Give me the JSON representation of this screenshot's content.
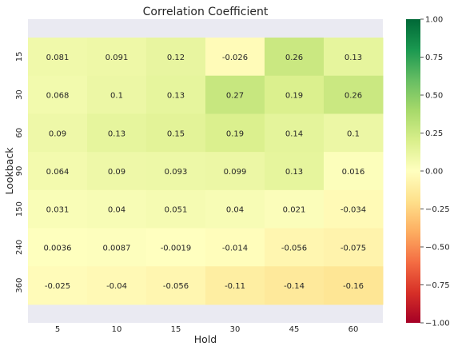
{
  "chart_data": {
    "type": "heatmap",
    "title": "Correlation Coefficient",
    "xlabel": "Hold",
    "ylabel": "Lookback",
    "x_categories": [
      "5",
      "10",
      "15",
      "30",
      "45",
      "60"
    ],
    "y_categories": [
      "15",
      "30",
      "60",
      "90",
      "150",
      "240",
      "360"
    ],
    "values": [
      [
        0.081,
        0.091,
        0.12,
        -0.026,
        0.26,
        0.13
      ],
      [
        0.068,
        0.1,
        0.13,
        0.27,
        0.19,
        0.26
      ],
      [
        0.09,
        0.13,
        0.15,
        0.19,
        0.14,
        0.1
      ],
      [
        0.064,
        0.09,
        0.093,
        0.099,
        0.13,
        0.016
      ],
      [
        0.031,
        0.04,
        0.051,
        0.04,
        0.021,
        -0.034
      ],
      [
        0.0036,
        0.0087,
        -0.0019,
        -0.014,
        -0.056,
        -0.075
      ],
      [
        -0.025,
        -0.04,
        -0.056,
        -0.11,
        -0.14,
        -0.16
      ]
    ],
    "value_labels": [
      [
        "0.081",
        "0.091",
        "0.12",
        "-0.026",
        "0.26",
        "0.13"
      ],
      [
        "0.068",
        "0.1",
        "0.13",
        "0.27",
        "0.19",
        "0.26"
      ],
      [
        "0.09",
        "0.13",
        "0.15",
        "0.19",
        "0.14",
        "0.1"
      ],
      [
        "0.064",
        "0.09",
        "0.093",
        "0.099",
        "0.13",
        "0.016"
      ],
      [
        "0.031",
        "0.04",
        "0.051",
        "0.04",
        "0.021",
        "-0.034"
      ],
      [
        "0.0036",
        "0.0087",
        "-0.0019",
        "-0.014",
        "-0.056",
        "-0.075"
      ],
      [
        "-0.025",
        "-0.04",
        "-0.056",
        "-0.11",
        "-0.14",
        "-0.16"
      ]
    ],
    "colorbar": {
      "range": [
        -1,
        1
      ],
      "colormap": "RdYlGn",
      "ticks": [
        1.0,
        0.75,
        0.5,
        0.25,
        0.0,
        -0.25,
        -0.5,
        -0.75,
        -1.0
      ],
      "tick_labels": [
        "1.00",
        "0.75",
        "0.50",
        "0.25",
        "0.00",
        "−0.25",
        "−0.50",
        "−0.75",
        "−1.00"
      ]
    },
    "colors": {
      "axes_background": "#eaeaf2",
      "text": "#262626"
    }
  }
}
